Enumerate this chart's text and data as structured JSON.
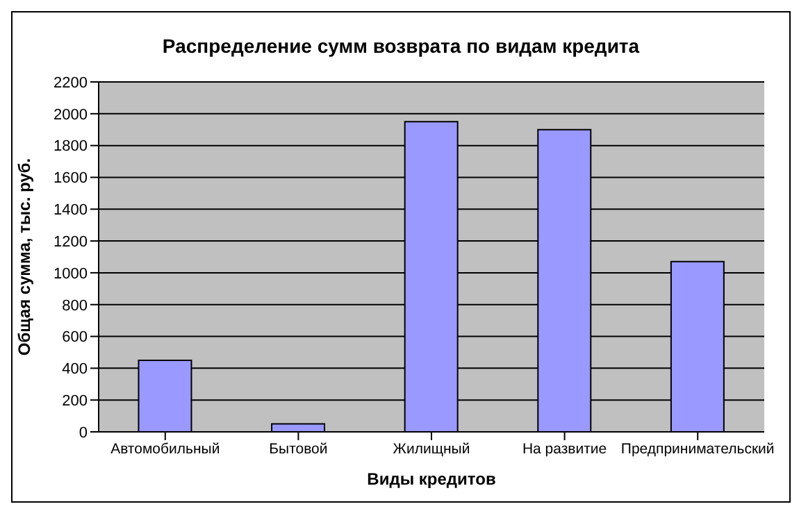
{
  "chart_data": {
    "type": "bar",
    "title": "Распределение сумм возврата по видам кредита",
    "xlabel": "Виды кредитов",
    "ylabel": "Общая сумма, тыс. руб.",
    "categories": [
      "Автомобильный",
      "Бытовой",
      "Жилищный",
      "На развитие",
      "Предпринимательский"
    ],
    "values": [
      450,
      50,
      1950,
      1900,
      1070
    ],
    "color": "#9999ff",
    "ylim": [
      0,
      2200
    ],
    "yticks": [
      0,
      200,
      400,
      600,
      800,
      1000,
      1200,
      1400,
      1600,
      1800,
      2000,
      2200
    ],
    "grid": "y"
  }
}
